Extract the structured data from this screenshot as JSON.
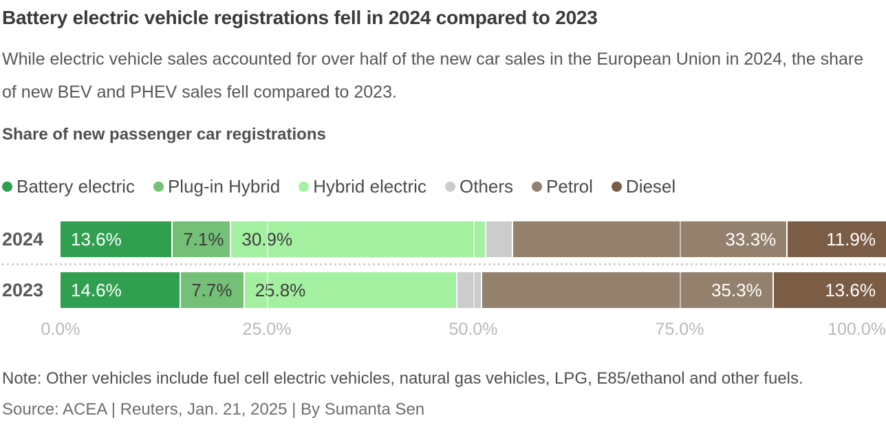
{
  "title": "Battery electric vehicle registrations fell in 2024 compared to 2023",
  "subtitle": "While electric vehicle sales accounted for over half of the new car sales in the European Union in 2024, the share of new BEV and PHEV sales fell compared to 2023.",
  "section_header": "Share of new passenger car registrations",
  "colors": {
    "battery_electric": "#30a050",
    "plug_in_hybrid": "#74c076",
    "hybrid_electric": "#a4f0a1",
    "others": "#cccccc",
    "petrol": "#93806d",
    "diesel": "#7b5d45",
    "label_light": "#ffffff",
    "label_dark": "#3d3d3d"
  },
  "legend": [
    {
      "label": "Battery electric",
      "color": "#30a050"
    },
    {
      "label": "Plug-in Hybrid",
      "color": "#74c076"
    },
    {
      "label": "Hybrid electric",
      "color": "#a4f0a1"
    },
    {
      "label": "Others",
      "color": "#cccccc"
    },
    {
      "label": "Petrol",
      "color": "#93806d"
    },
    {
      "label": "Diesel",
      "color": "#7b5d45"
    }
  ],
  "rows": [
    {
      "year": "2024",
      "segments": [
        {
          "name": "battery-electric",
          "value": 13.6,
          "label": "13.6%",
          "color": "#30a050",
          "label_align": "left",
          "label_color": "#ffffff"
        },
        {
          "name": "plug-in-hybrid",
          "value": 7.1,
          "label": "7.1%",
          "color": "#74c076",
          "label_align": "left",
          "label_color": "#3d3d3d"
        },
        {
          "name": "hybrid-electric",
          "value": 30.9,
          "label": "30.9%",
          "color": "#a4f0a1",
          "label_align": "left",
          "label_color": "#3d3d3d"
        },
        {
          "name": "others",
          "value": 3.2,
          "label": "",
          "color": "#cccccc",
          "label_align": null,
          "label_color": null
        },
        {
          "name": "petrol",
          "value": 33.3,
          "label": "33.3%",
          "color": "#93806d",
          "label_align": "right",
          "label_color": "#ffffff"
        },
        {
          "name": "diesel",
          "value": 11.9,
          "label": "11.9%",
          "color": "#7b5d45",
          "label_align": "right",
          "label_color": "#ffffff"
        }
      ]
    },
    {
      "year": "2023",
      "segments": [
        {
          "name": "battery-electric",
          "value": 14.6,
          "label": "14.6%",
          "color": "#30a050",
          "label_align": "left",
          "label_color": "#ffffff"
        },
        {
          "name": "plug-in-hybrid",
          "value": 7.7,
          "label": "7.7%",
          "color": "#74c076",
          "label_align": "left",
          "label_color": "#3d3d3d"
        },
        {
          "name": "hybrid-electric",
          "value": 25.8,
          "label": "25.8%",
          "color": "#a4f0a1",
          "label_align": "left",
          "label_color": "#3d3d3d"
        },
        {
          "name": "others",
          "value": 3.0,
          "label": "",
          "color": "#cccccc",
          "label_align": null,
          "label_color": null
        },
        {
          "name": "petrol",
          "value": 35.3,
          "label": "35.3%",
          "color": "#93806d",
          "label_align": "right",
          "label_color": "#ffffff"
        },
        {
          "name": "diesel",
          "value": 13.6,
          "label": "13.6%",
          "color": "#7b5d45",
          "label_align": "right",
          "label_color": "#ffffff"
        }
      ]
    }
  ],
  "axis": {
    "ticks": [
      {
        "label": "0.0%",
        "pos": 0
      },
      {
        "label": "25.0%",
        "pos": 25
      },
      {
        "label": "50.0%",
        "pos": 50
      },
      {
        "label": "75.0%",
        "pos": 75
      },
      {
        "label": "100.0%",
        "pos": 100
      }
    ],
    "gridlines": [
      25,
      50,
      75
    ]
  },
  "note": "Note: Other vehicles include fuel cell electric vehicles, natural gas vehicles, LPG, E85/ethanol and other fuels.",
  "source": "Source: ACEA | Reuters, Jan. 21, 2025 | By Sumanta Sen",
  "chart_data": {
    "type": "bar",
    "orientation": "horizontal",
    "stacked": true,
    "title": "Share of new passenger car registrations",
    "categories": [
      "2024",
      "2023"
    ],
    "series": [
      {
        "name": "Battery electric",
        "values": [
          13.6,
          14.6
        ],
        "color": "#30a050"
      },
      {
        "name": "Plug-in Hybrid",
        "values": [
          7.1,
          7.7
        ],
        "color": "#74c076"
      },
      {
        "name": "Hybrid electric",
        "values": [
          30.9,
          25.8
        ],
        "color": "#a4f0a1"
      },
      {
        "name": "Others",
        "values": [
          3.2,
          3.0
        ],
        "color": "#cccccc"
      },
      {
        "name": "Petrol",
        "values": [
          33.3,
          35.3
        ],
        "color": "#93806d"
      },
      {
        "name": "Diesel",
        "values": [
          11.9,
          13.6
        ],
        "color": "#7b5d45"
      }
    ],
    "xlabel": "",
    "ylabel": "",
    "xlim": [
      0,
      100
    ],
    "x_tick_labels": [
      "0.0%",
      "25.0%",
      "50.0%",
      "75.0%",
      "100.0%"
    ],
    "legend_position": "top",
    "grid": "vertical-white-overlay"
  }
}
